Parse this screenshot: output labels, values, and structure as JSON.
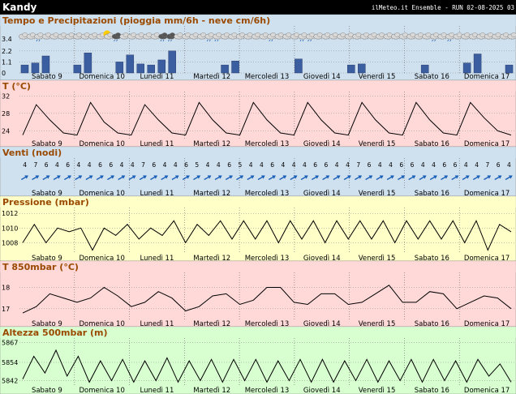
{
  "header": {
    "location": "Kandy",
    "run_info": "ilMeteo.it Ensemble - RUN 02-08-2025 03"
  },
  "days": [
    "Sabato 9",
    "Domenica 10",
    "Lunedì 11",
    "Martedì 12",
    "Mercoledì 13",
    "Giovedì 14",
    "Venerdì 15",
    "Sabato 16",
    "Domenica 17"
  ],
  "weather_icons": [
    "cloud-icon",
    "cloud-icon",
    "cloud-rain-icon",
    "cloud-icon",
    "cloud-icon",
    "cloud-icon",
    "cloud-icon",
    "cloud-icon",
    "cloud-icon",
    "cloud-icon",
    "cloud-icon",
    "sun-cloud-icon",
    "storm-cloud-icon",
    "cloud-icon",
    "cloud-icon",
    "cloud-icon",
    "cloud-icon",
    "cloud-icon",
    "storm-cloud-icon",
    "storm-cloud-icon",
    "cloud-icon",
    "cloud-icon",
    "cloud-icon",
    "cloud-icon",
    "cloud-rain-icon",
    "cloud-rain-icon",
    "cloud-icon",
    "cloud-icon",
    "cloud-icon",
    "cloud-icon",
    "cloud-icon",
    "cloud-icon",
    "cloud-rain-icon",
    "cloud-icon",
    "cloud-icon",
    "cloud-icon",
    "cloud-rain-icon",
    "cloud-rain-icon",
    "cloud-icon",
    "cloud-icon",
    "cloud-icon",
    "cloud-icon",
    "cloud-icon",
    "cloud-icon",
    "cloud-icon",
    "cloud-icon",
    "cloud-icon",
    "cloud-icon",
    "cloud-icon",
    "cloud-icon",
    "cloud-icon",
    "cloud-icon",
    "cloud-icon",
    "cloud-rain-icon",
    "cloud-icon",
    "cloud-rain-icon",
    "cloud-icon",
    "cloud-icon",
    "cloud-icon",
    "cloud-icon",
    "cloud-icon",
    "cloud-icon",
    "cloud-icon",
    "cloud-icon"
  ],
  "colors": {
    "precip_bg": "#cfe0ee",
    "temp_bg": "#ffd8d8",
    "wind_bg": "#cfe0ee",
    "press_bg": "#ffffc8",
    "t850_bg": "#ffd8d8",
    "z500_bg": "#d8ffd0",
    "bar": "#3a5ea0",
    "arrow": "#1a5fb8",
    "header_bg": "#000000"
  },
  "chart_data": [
    {
      "type": "bar",
      "title": "Tempo e Precipitazioni (pioggia mm/6h - neve cm/6h)",
      "yticks": [
        "3.4",
        "2.2",
        "1.1",
        "0"
      ],
      "ylim": [
        0,
        3.4
      ],
      "values": [
        0.8,
        1.0,
        1.7,
        0,
        0,
        0.8,
        2.0,
        0,
        0,
        1.1,
        1.8,
        0.9,
        0.8,
        1.3,
        2.2,
        0,
        0,
        0,
        0,
        0.8,
        1.2,
        0,
        0,
        0,
        0,
        0,
        1.4,
        0,
        0,
        0,
        0,
        0.8,
        0.9,
        0,
        0,
        0,
        0,
        0,
        0.8,
        0,
        0,
        0,
        1.0,
        1.9,
        0,
        0,
        0.8
      ]
    },
    {
      "type": "line",
      "title": "T (°C)",
      "yticks": [
        "32",
        "28",
        "24"
      ],
      "ylim": [
        22,
        33
      ],
      "values": [
        23,
        30,
        26.5,
        23.5,
        23,
        30.5,
        26,
        23.5,
        23,
        30,
        26.5,
        23.5,
        23,
        30.5,
        26.5,
        23.5,
        23,
        30.5,
        26.5,
        23.5,
        23,
        30.5,
        26.5,
        23.5,
        23,
        30.5,
        26.5,
        23.5,
        23,
        30.5,
        26.5,
        23.5,
        23,
        30.5,
        27,
        24,
        23
      ]
    },
    {
      "type": "table",
      "title": "Venti (nodi)",
      "speeds": [
        4,
        7,
        6,
        4,
        6,
        4,
        4,
        6,
        6,
        4,
        4,
        7,
        6,
        4,
        4,
        6,
        5,
        4,
        4,
        6,
        5,
        4,
        4,
        6,
        4,
        4,
        4,
        6,
        6,
        4,
        4,
        7,
        6,
        4,
        4,
        6,
        6,
        4,
        4,
        6,
        6,
        4,
        4,
        7,
        6,
        4
      ],
      "directions": [
        "NE",
        "NE",
        "NE",
        "NE",
        "NE",
        "NE",
        "NE",
        "NE",
        "NE",
        "NE",
        "NE",
        "NE",
        "NE",
        "NE",
        "NE",
        "NE",
        "NE",
        "NE",
        "NE",
        "NE",
        "NE",
        "NE",
        "NE",
        "NE",
        "NE",
        "NE",
        "NE",
        "NE",
        "NE",
        "NE",
        "NE",
        "NE",
        "NE",
        "NE",
        "NE",
        "NE",
        "NE",
        "NE",
        "NE",
        "NE",
        "NE",
        "NE",
        "NE",
        "NE",
        "NE",
        "NE"
      ]
    },
    {
      "type": "line",
      "title": "Pressione (mbar)",
      "yticks": [
        "1012",
        "1010",
        "1008"
      ],
      "ylim": [
        1006.5,
        1012.8
      ],
      "values": [
        1008,
        1010.5,
        1008,
        1010,
        1009.5,
        1010,
        1007,
        1010,
        1009,
        1010.5,
        1008.5,
        1010,
        1009,
        1011,
        1008,
        1010.5,
        1009,
        1011,
        1008.5,
        1011,
        1008.5,
        1011,
        1008,
        1011,
        1008.5,
        1011,
        1008,
        1011,
        1008.5,
        1011,
        1008.5,
        1011,
        1008,
        1011,
        1008.5,
        1011,
        1008.5,
        1011,
        1008,
        1011,
        1007,
        1010.5,
        1009.5
      ]
    },
    {
      "type": "line",
      "title": "T 850mbar (°C)",
      "yticks": [
        "18",
        "17"
      ],
      "ylim": [
        16.5,
        18.7
      ],
      "values": [
        16.8,
        17.1,
        17.7,
        17.5,
        17.3,
        17.5,
        18.0,
        17.6,
        17.1,
        17.3,
        17.8,
        17.5,
        16.9,
        17.1,
        17.6,
        17.7,
        17.2,
        17.4,
        18.0,
        18.0,
        17.3,
        17.2,
        17.7,
        17.7,
        17.2,
        17.3,
        17.7,
        18.1,
        17.3,
        17.3,
        17.8,
        17.7,
        17.0,
        17.3,
        17.6,
        17.5,
        17.0
      ]
    },
    {
      "type": "line",
      "title": "Altezza 500mbar (m)",
      "yticks": [
        "5867",
        "5854",
        "5842"
      ],
      "ylim": [
        5838,
        5870
      ],
      "values": [
        5843,
        5858,
        5847,
        5862,
        5845,
        5858,
        5841,
        5855,
        5842,
        5856,
        5841,
        5855,
        5842,
        5857,
        5841,
        5855,
        5842,
        5856,
        5841,
        5856,
        5842,
        5856,
        5841,
        5855,
        5842,
        5856,
        5841,
        5856,
        5841,
        5855,
        5842,
        5856,
        5841,
        5855,
        5842,
        5856,
        5841,
        5856,
        5842,
        5855,
        5841,
        5856,
        5845,
        5853,
        5841
      ]
    }
  ]
}
